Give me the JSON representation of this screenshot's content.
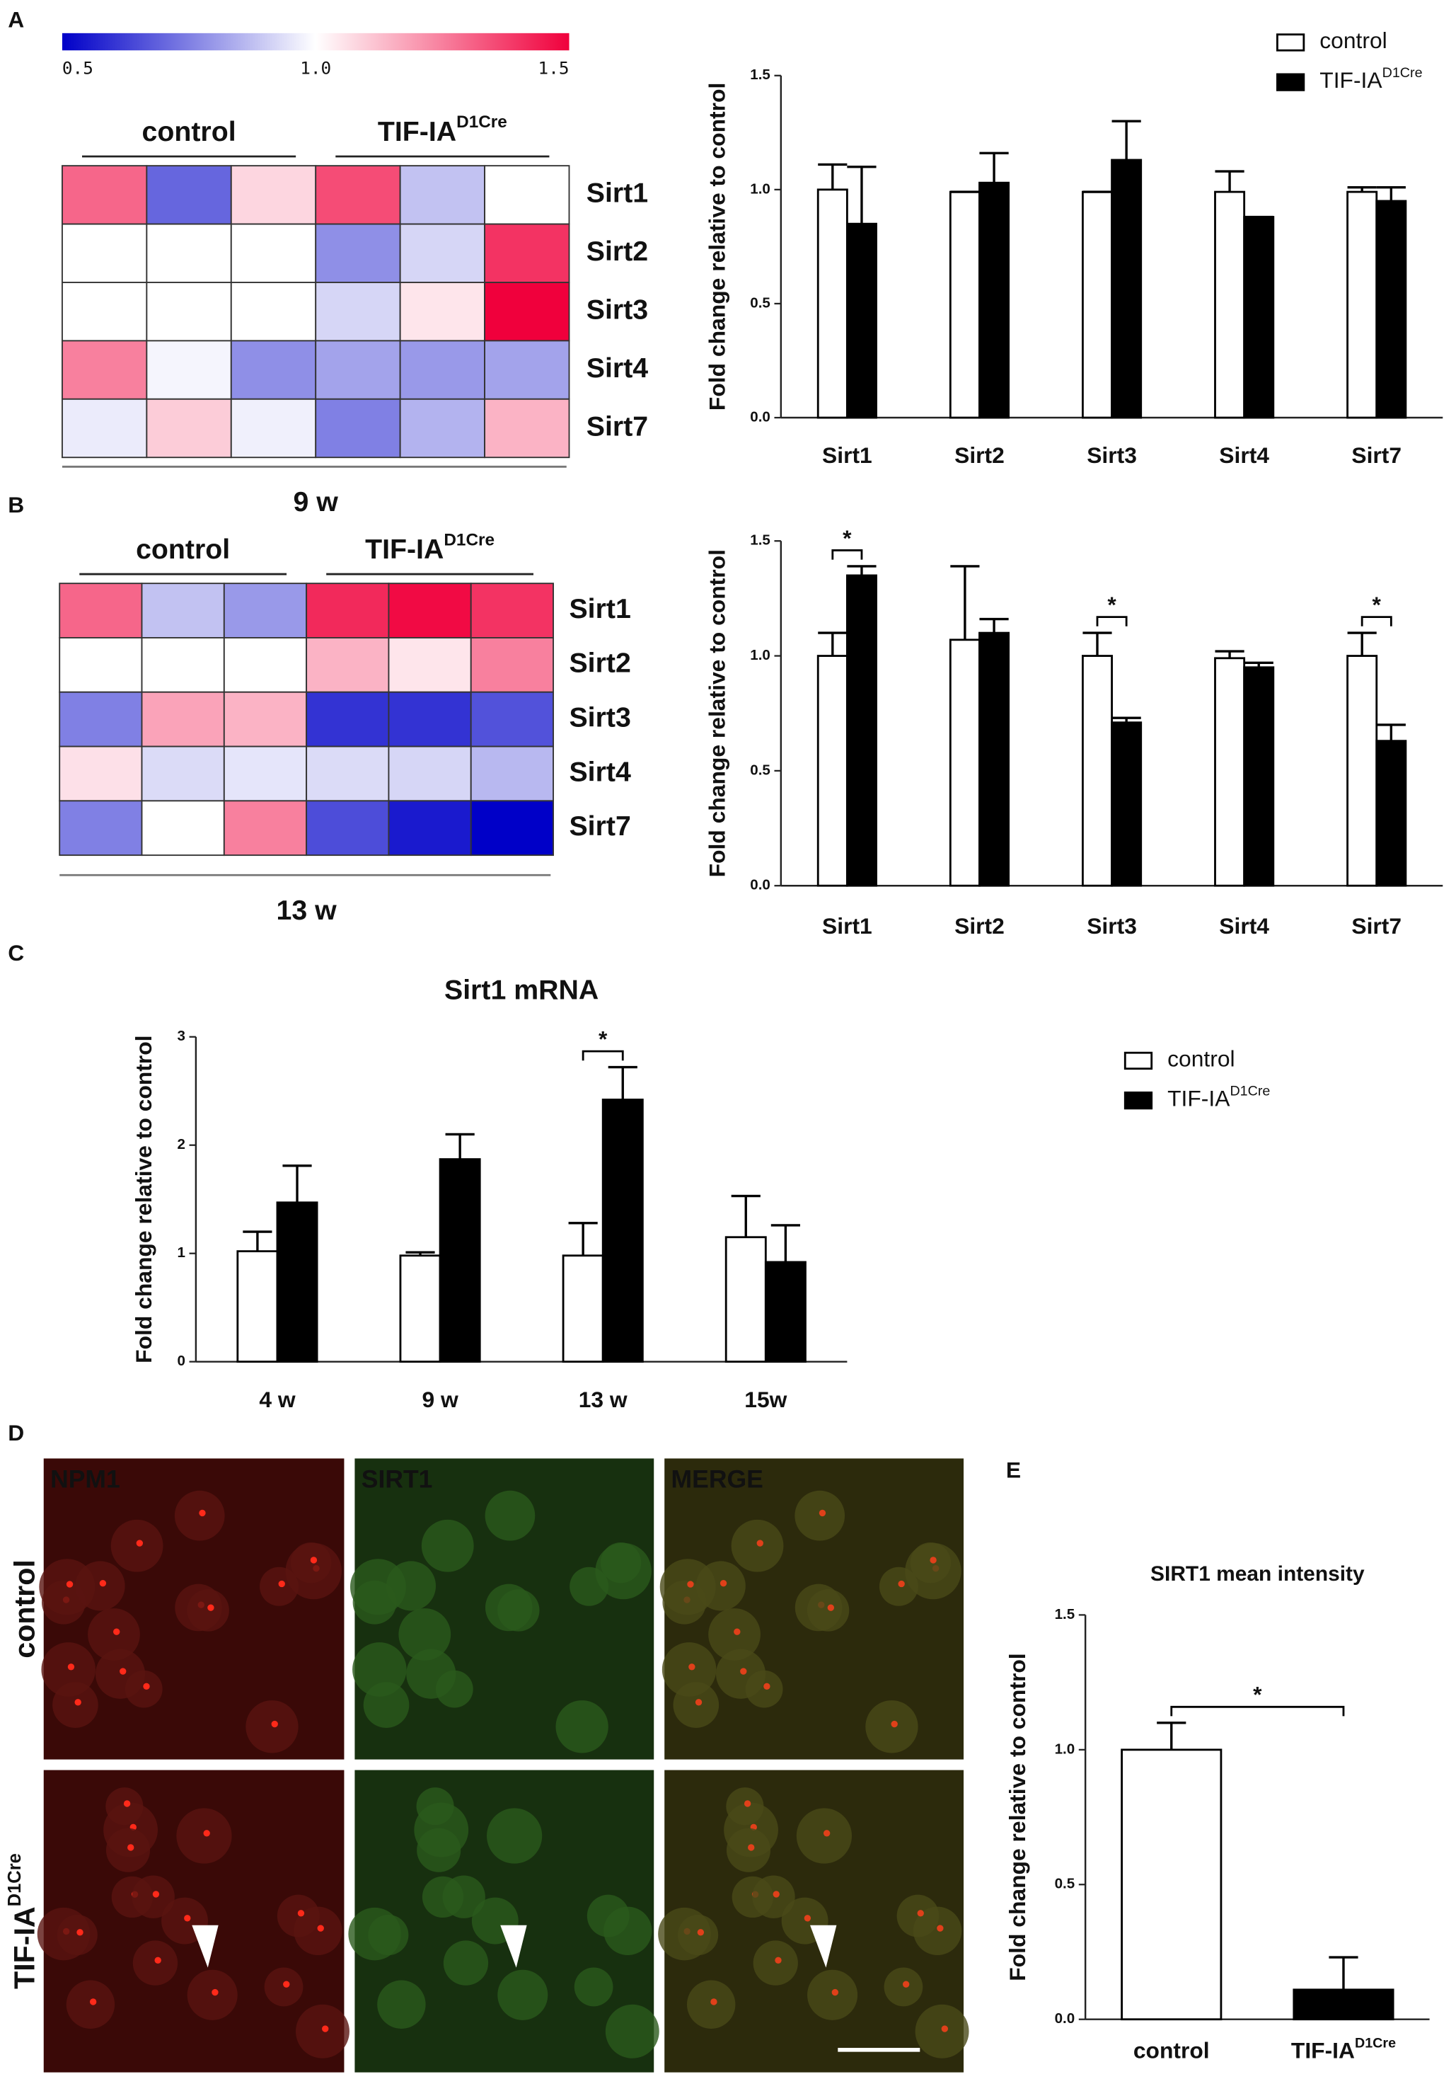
{
  "panels": [
    "A",
    "B",
    "C",
    "D",
    "E"
  ],
  "chart_data": [
    {
      "type": "heatmap",
      "rows": [
        "Sirt1",
        "Sirt2",
        "Sirt3",
        "Sirt4",
        "Sirt7"
      ],
      "groups": [
        {
          "name": "control"
        },
        {
          "name": "TIF-IA",
          "sup": "D1Cre"
        }
      ],
      "values": [
        [
          1.3,
          0.7,
          1.08,
          1.35,
          0.88,
          1.0
        ],
        [
          1.0,
          1.0,
          1.0,
          0.78,
          0.92,
          1.4
        ],
        [
          1.0,
          1.0,
          1.0,
          0.92,
          1.05,
          1.5
        ],
        [
          1.25,
          0.98,
          0.78,
          0.82,
          0.8,
          0.82
        ],
        [
          0.96,
          1.1,
          0.97,
          0.75,
          0.85,
          1.15
        ]
      ],
      "xlabel": "9 w",
      "clim": [
        0.5,
        1.5
      ],
      "colormap": {
        "low": "#0000c8",
        "mid": "#ffffff",
        "high": "#f0003c"
      },
      "colorbar": true,
      "cticks": [
        0.5,
        {
          "value": 1,
          "label": "1.0"
        },
        1.5
      ]
    },
    {
      "type": "bar",
      "ylabel": "Fold change relative to control",
      "categories": [
        "Sirt1",
        "Sirt2",
        "Sirt3",
        "Sirt4",
        "Sirt7"
      ],
      "series": [
        {
          "name": "control",
          "color": "#ffffff",
          "values": [
            1.0,
            0.99,
            0.99,
            0.99,
            0.99
          ],
          "errors": [
            0.11,
            0,
            0,
            0.09,
            0.02
          ]
        },
        {
          "name": "TIF-IA",
          "sup": "D1Cre",
          "color": "#000000",
          "values": [
            0.85,
            1.03,
            1.13,
            0.88,
            0.95
          ],
          "errors": [
            0.25,
            0.13,
            0.17,
            0,
            0.06
          ]
        }
      ],
      "ylim": [
        0,
        1.5
      ],
      "yticks": [
        {
          "value": 0,
          "label": "0.0"
        },
        0.5,
        {
          "value": 1,
          "label": "1.0"
        },
        1.5
      ],
      "legend": true
    },
    {
      "type": "heatmap",
      "rows": [
        "Sirt1",
        "Sirt2",
        "Sirt3",
        "Sirt4",
        "Sirt7"
      ],
      "groups": [
        {
          "name": "control"
        },
        {
          "name": "TIF-IA",
          "sup": "D1Cre"
        }
      ],
      "values": [
        [
          1.3,
          0.88,
          0.8,
          1.42,
          1.48,
          1.4
        ],
        [
          1.0,
          1.0,
          1.0,
          1.15,
          1.05,
          1.25
        ],
        [
          0.75,
          1.18,
          1.15,
          0.6,
          0.6,
          0.66
        ],
        [
          1.06,
          0.93,
          0.95,
          0.93,
          0.92,
          0.86
        ],
        [
          0.75,
          1.0,
          1.25,
          0.65,
          0.55,
          0.5
        ]
      ],
      "xlabel": "13 w",
      "clim": [
        0.5,
        1.5
      ],
      "colormap": {
        "low": "#0000c8",
        "mid": "#ffffff",
        "high": "#f0003c"
      },
      "colorbar": false
    },
    {
      "type": "bar",
      "ylabel": "Fold change relative to control",
      "categories": [
        "Sirt1",
        "Sirt2",
        "Sirt3",
        "Sirt4",
        "Sirt7"
      ],
      "series": [
        {
          "name": "control",
          "color": "#ffffff",
          "values": [
            1.0,
            1.07,
            1.0,
            0.99,
            1.0
          ],
          "errors": [
            0.1,
            0.32,
            0.1,
            0.03,
            0.1
          ]
        },
        {
          "name": "TIF-IA",
          "sup": "D1Cre",
          "color": "#000000",
          "values": [
            1.35,
            1.1,
            0.71,
            0.95,
            0.63
          ],
          "errors": [
            0.04,
            0.06,
            0.02,
            0.02,
            0.07
          ]
        }
      ],
      "significance": [
        "*",
        null,
        "*",
        null,
        "*"
      ],
      "ylim": [
        0,
        1.5
      ],
      "yticks": [
        {
          "value": 0,
          "label": "0.0"
        },
        0.5,
        {
          "value": 1,
          "label": "1.0"
        },
        1.5
      ],
      "legend": false
    },
    {
      "type": "bar",
      "title": "Sirt1 mRNA",
      "ylabel": "Fold change relative to control",
      "categories": [
        "4 w",
        "9 w",
        "13 w",
        "15w"
      ],
      "series": [
        {
          "name": "control",
          "color": "#ffffff",
          "values": [
            1.02,
            0.98,
            0.98,
            1.15
          ],
          "errors": [
            0.18,
            0.03,
            0.3,
            0.38
          ]
        },
        {
          "name": "TIF-IA",
          "sup": "D1Cre",
          "color": "#000000",
          "values": [
            1.47,
            1.87,
            2.42,
            0.92
          ],
          "errors": [
            0.34,
            0.23,
            0.3,
            0.34
          ]
        }
      ],
      "significance": [
        null,
        null,
        "*",
        null
      ],
      "ylim": [
        0,
        3
      ],
      "yticks": [
        0,
        1,
        2,
        3
      ],
      "legend": true
    },
    {
      "type": "bar",
      "title": "SIRT1 mean intensity",
      "ylabel": "Fold change relative to control",
      "categories": [
        "control",
        "TIF-IA"
      ],
      "category_sups": [
        null,
        "D1Cre"
      ],
      "values": [
        1.0,
        0.11
      ],
      "errors": [
        0.1,
        0.12
      ],
      "colors": [
        "#ffffff",
        "#000000"
      ],
      "significance": "*",
      "ylim": [
        0,
        1.5
      ],
      "yticks": [
        {
          "value": 0,
          "label": "0.0"
        },
        0.5,
        {
          "value": 1,
          "label": "1.0"
        },
        1.5
      ]
    }
  ],
  "panel_d": {
    "columns": [
      "NPM1",
      "SIRT1",
      "MERGE"
    ],
    "rows": [
      {
        "name": "control"
      },
      {
        "name": "TIF-IA",
        "sup": "D1Cre"
      }
    ]
  }
}
